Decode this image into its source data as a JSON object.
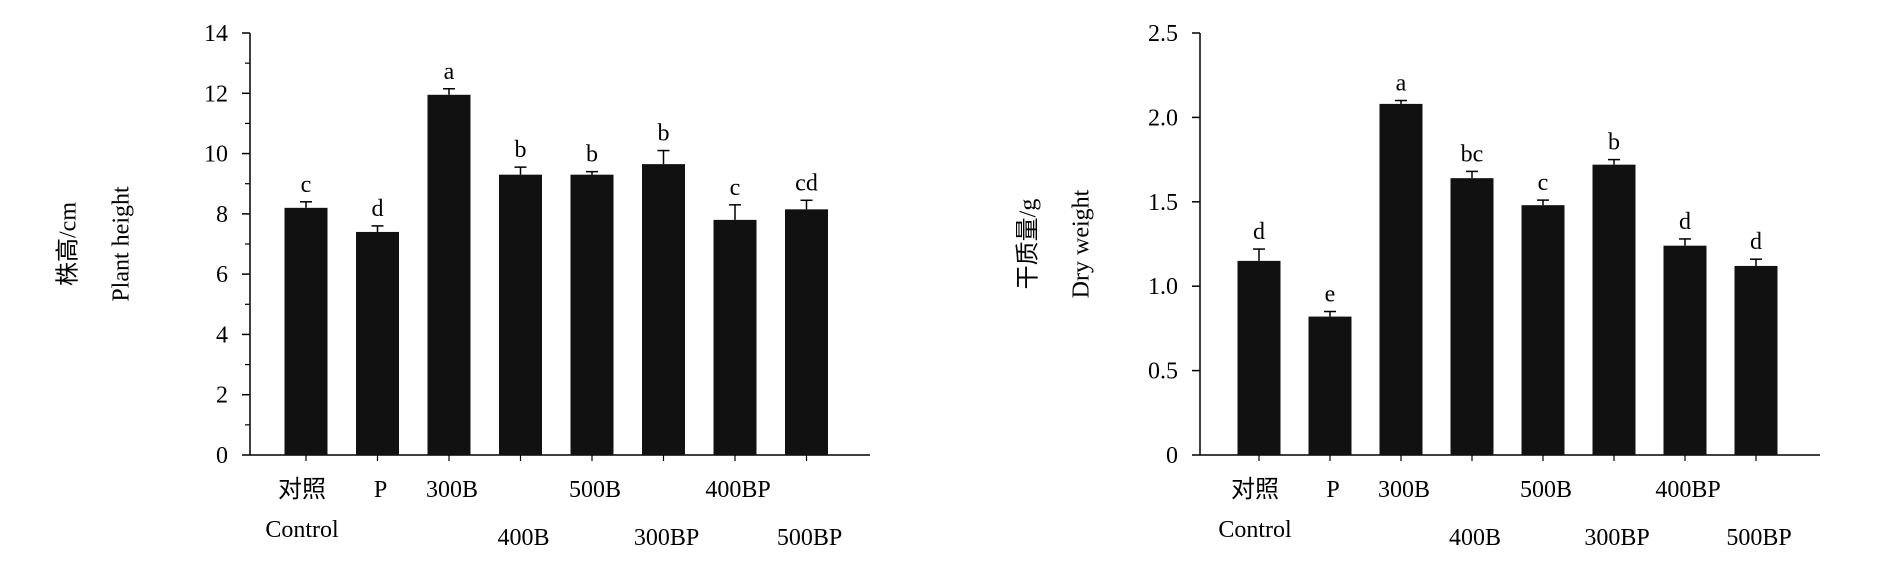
{
  "chart_data": [
    {
      "type": "bar",
      "categories": [
        "对照|Control",
        "P",
        "300B",
        "400B",
        "500B",
        "300BP",
        "400BP",
        "500BP"
      ],
      "category_lines": [
        [
          "对照",
          "Control"
        ],
        [
          "P"
        ],
        [
          "300B"
        ],
        [
          "400B"
        ],
        [
          "500B"
        ],
        [
          "300BP"
        ],
        [
          "400BP"
        ],
        [
          "500BP"
        ]
      ],
      "values": [
        8.2,
        7.4,
        11.95,
        9.3,
        9.3,
        9.65,
        7.8,
        8.15
      ],
      "errors": [
        0.2,
        0.2,
        0.2,
        0.25,
        0.1,
        0.45,
        0.5,
        0.3
      ],
      "significance": [
        "c",
        "d",
        "a",
        "b",
        "b",
        "b",
        "c",
        "cd"
      ],
      "ylabel_lines": [
        "株高/cm",
        "Plant height"
      ],
      "ylim": [
        0,
        14
      ],
      "yticks": [
        "0",
        "2",
        "4",
        "6",
        "8",
        "10",
        "12",
        "14"
      ],
      "bar_color": "#111111"
    },
    {
      "type": "bar",
      "categories": [
        "对照|Control",
        "P",
        "300B",
        "400B",
        "500B",
        "300BP",
        "400BP",
        "500BP"
      ],
      "category_lines": [
        [
          "对照",
          "Control"
        ],
        [
          "P"
        ],
        [
          "300B"
        ],
        [
          "400B"
        ],
        [
          "500B"
        ],
        [
          "300BP"
        ],
        [
          "400BP"
        ],
        [
          "500BP"
        ]
      ],
      "values": [
        1.15,
        0.82,
        2.08,
        1.64,
        1.48,
        1.72,
        1.24,
        1.12
      ],
      "errors": [
        0.07,
        0.03,
        0.02,
        0.04,
        0.03,
        0.03,
        0.04,
        0.04
      ],
      "significance": [
        "d",
        "e",
        "a",
        "bc",
        "c",
        "b",
        "d",
        "d"
      ],
      "ylabel_lines": [
        "干质量/g",
        "Dry weight"
      ],
      "ylim": [
        0,
        2.5
      ],
      "yticks": [
        "0",
        "0.5",
        "1.0",
        "1.5",
        "2.0",
        "2.5"
      ],
      "bar_color": "#111111"
    }
  ]
}
